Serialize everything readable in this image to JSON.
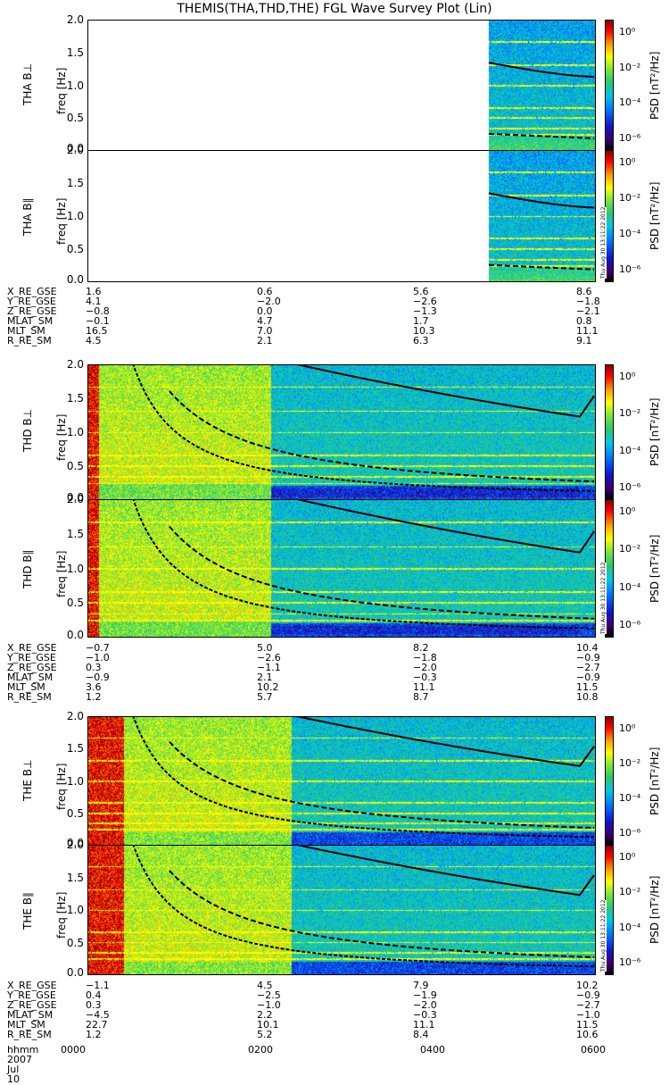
{
  "title": "THEMIS(THA,THD,THE) FGL Wave Survey Plot (Lin)",
  "freq_label": "freq [Hz]",
  "y_ticks": [
    "2.0",
    "1.5",
    "1.0",
    "0.5",
    "0.0"
  ],
  "cb_label": "PSD [nT²/Hz]",
  "cb_ticks": [
    "10⁰",
    "10⁻²",
    "10⁻⁴",
    "10⁻⁶"
  ],
  "stamp": "Thu Aug 30 13:11:22 2012",
  "time_label": "hhmm",
  "date_label": "2007 Jul 10",
  "time_ticks": [
    "0000",
    "0200",
    "0400",
    "0600"
  ],
  "colors": {
    "dark_red": "#8b0000",
    "red": "#ff0000",
    "yellow": "#ffff00",
    "green": "#33cc66",
    "cyan": "#00ccff",
    "blue": "#1a1aff",
    "navy": "#000066"
  },
  "chart_data": [
    {
      "type": "heatmap",
      "probe": "THA",
      "component": "B⊥",
      "ylabel": "THA B⊥",
      "ylim": [
        0,
        2.0
      ],
      "yunit": "Hz",
      "x": "time",
      "data_start_frac": 0.79,
      "scale": "log PSD 1e-6..1e0"
    },
    {
      "type": "heatmap",
      "probe": "THA",
      "component": "B∥",
      "ylabel": "THA B∥",
      "ylim": [
        0,
        2.0
      ],
      "yunit": "Hz",
      "x": "time",
      "data_start_frac": 0.79,
      "scale": "log PSD 1e-6..1e0"
    },
    {
      "type": "heatmap",
      "probe": "THD",
      "component": "B⊥",
      "ylabel": "THD B⊥",
      "ylim": [
        0,
        2.0
      ],
      "yunit": "Hz",
      "x": "time",
      "scale": "log PSD 1e-6..1e0"
    },
    {
      "type": "heatmap",
      "probe": "THD",
      "component": "B∥",
      "ylabel": "THD B∥",
      "ylim": [
        0,
        2.0
      ],
      "yunit": "Hz",
      "x": "time",
      "scale": "log PSD 1e-6..1e0"
    },
    {
      "type": "heatmap",
      "probe": "THE",
      "component": "B⊥",
      "ylabel": "THE B⊥",
      "ylim": [
        0,
        2.0
      ],
      "yunit": "Hz",
      "x": "time",
      "scale": "log PSD 1e-6..1e0"
    },
    {
      "type": "heatmap",
      "probe": "THE",
      "component": "B∥",
      "ylabel": "THE B∥",
      "ylim": [
        0,
        2.0
      ],
      "yunit": "Hz",
      "x": "time",
      "scale": "log PSD 1e-6..1e0"
    }
  ],
  "ephemeris": [
    {
      "rows": [
        {
          "name": "X_RE_GSE",
          "values": [
            "1.6",
            "0.6",
            "5.6",
            "8.6"
          ]
        },
        {
          "name": "Y_RE_GSE",
          "values": [
            "4.1",
            "−2.0",
            "−2.6",
            "−1.8"
          ]
        },
        {
          "name": "Z_RE_GSE",
          "values": [
            "−0.8",
            "0.0",
            "−1.3",
            "−2.1"
          ]
        },
        {
          "name": "MLAT_SM",
          "values": [
            "−0.1",
            "4.7",
            "1.7",
            "0.8"
          ]
        },
        {
          "name": "MLT_SM",
          "values": [
            "16.5",
            "7.0",
            "10.3",
            "11.1"
          ]
        },
        {
          "name": "R_RE_SM",
          "values": [
            "4.5",
            "2.1",
            "6.3",
            "9.1"
          ]
        }
      ]
    },
    {
      "rows": [
        {
          "name": "X_RE_GSE",
          "values": [
            "−0.7",
            "5.0",
            "8.2",
            "10.4"
          ]
        },
        {
          "name": "Y_RE_GSE",
          "values": [
            "−1.0",
            "−2.6",
            "−1.8",
            "−0.9"
          ]
        },
        {
          "name": "Z_RE_GSE",
          "values": [
            "0.3",
            "−1.1",
            "−2.0",
            "−2.7"
          ]
        },
        {
          "name": "MLAT_SM",
          "values": [
            "−0.9",
            "2.1",
            "−0.3",
            "−0.9"
          ]
        },
        {
          "name": "MLT_SM",
          "values": [
            "3.6",
            "10.2",
            "11.1",
            "11.5"
          ]
        },
        {
          "name": "R_RE_SM",
          "values": [
            "1.2",
            "5.7",
            "8.7",
            "10.8"
          ]
        }
      ]
    },
    {
      "rows": [
        {
          "name": "X_RE_GSE",
          "values": [
            "−1.1",
            "4.5",
            "7.9",
            "10.2"
          ]
        },
        {
          "name": "Y_RE_GSE",
          "values": [
            "0.4",
            "−2.5",
            "−1.9",
            "−0.9"
          ]
        },
        {
          "name": "Z_RE_GSE",
          "values": [
            "0.3",
            "−1.0",
            "−2.0",
            "−2.7"
          ]
        },
        {
          "name": "MLAT_SM",
          "values": [
            "−4.5",
            "2.2",
            "−0.3",
            "−1.0"
          ]
        },
        {
          "name": "MLT_SM",
          "values": [
            "22.7",
            "10.1",
            "11.1",
            "11.5"
          ]
        },
        {
          "name": "R_RE_SM",
          "values": [
            "1.2",
            "5.2",
            "8.4",
            "10.6"
          ]
        }
      ]
    }
  ]
}
